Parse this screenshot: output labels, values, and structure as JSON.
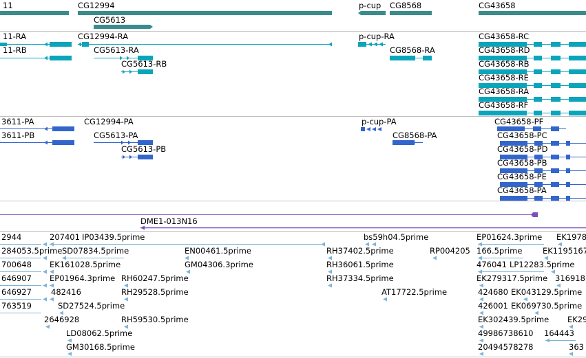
{
  "colors": {
    "gene": "#3a8c8c",
    "transcript": "#0aa5bb",
    "protein": "#3366cc",
    "clone": "#7b4fbf",
    "est": "#7fb4d9",
    "separator": "#c0c0c0"
  },
  "gene_track": {
    "labels": [
      "11",
      "CG12994",
      "CG5613",
      "p-cup",
      "CG8568",
      "CG43658"
    ]
  },
  "transcript_track": {
    "labels": [
      "11-RA",
      "11-RB",
      "CG12994-RA",
      "CG5613-RA",
      "CG5613-RB",
      "p-cup-RA",
      "CG8568-RA",
      "CG43658-RC",
      "CG43658-RD",
      "CG43658-RB",
      "CG43658-RE",
      "CG43658-RA",
      "CG43658-RF"
    ]
  },
  "protein_track": {
    "labels": [
      "3611-PA",
      "3611-PB",
      "CG12994-PA",
      "CG5613-PA",
      "CG5613-PB",
      "p-cup-PA",
      "CG8568-PA",
      "CG43658-PF",
      "CG43658-PC",
      "CG43658-PD",
      "CG43658-PB",
      "CG43658-PE",
      "CG43658-PA"
    ]
  },
  "clone_track": {
    "labels": [
      "DME1-013N16"
    ]
  },
  "est_track": {
    "labels": [
      "2944",
      "207401",
      "IP03439.5prime",
      "bs59h04.5prime",
      "EP01624.3prime",
      "EK1978",
      "284053.5prime",
      "SD07834.5prime",
      "EN00461.5prime",
      "RH37402.5prime",
      "RP004205",
      "166.5prime",
      "EK1195167",
      "700648",
      "EK161028.5prime",
      "GM04306.3prime",
      "RH36061.5prime",
      "476041",
      "LP12283.5prime",
      "646907",
      "EP01964.3prime",
      "RH60247.5prime",
      "RH37334.5prime",
      "EK279317.5prime",
      "316918",
      "646927",
      "482416",
      "RH29528.5prime",
      "AT17722.5prime",
      "424680",
      "EK043129.5prime",
      "763519",
      "SD27524.5prime",
      "426001",
      "EK069730.5prime",
      "2646928",
      "RH59530.5prime",
      "EK302439.5prime",
      "EK29",
      "LD08062.5prime",
      "49986738610",
      "164443",
      "GM30168.5prime",
      "20494578278",
      "363"
    ]
  }
}
